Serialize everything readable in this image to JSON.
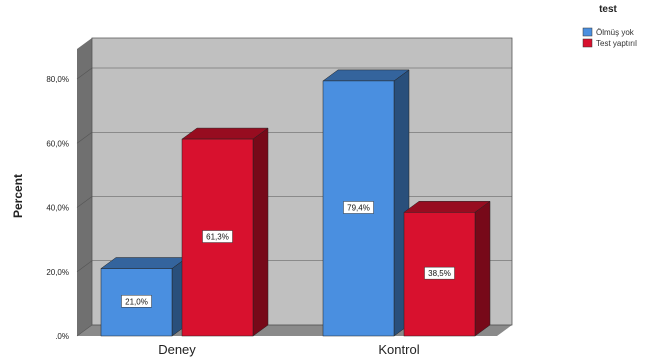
{
  "chart_data": {
    "type": "bar",
    "style": "3d-clustered",
    "categories": [
      "Deney",
      "Kontrol"
    ],
    "ylabel": "Percent",
    "ylim": [
      0,
      90
    ],
    "yticks": [
      0,
      20,
      40,
      60,
      80
    ],
    "ytick_labels": [
      ".0%",
      "20,0%",
      "40,0%",
      "60,0%",
      "80,0%"
    ],
    "legend_title": "test",
    "legend_position": "top-right",
    "series": [
      {
        "name": "Ölmüş yok",
        "color": "#4a8fe0",
        "values": [
          21.0,
          79.4
        ],
        "value_labels": [
          "21,0%",
          "79,4%"
        ]
      },
      {
        "name": "Test yaptırıl",
        "color": "#d8112e",
        "values": [
          61.3,
          38.5
        ],
        "value_labels": [
          "61,3%",
          "38,5%"
        ]
      }
    ],
    "colors": {
      "wall": "#c0c0c0",
      "floor": "#8a8a8a",
      "side_wall": "#707070"
    }
  }
}
